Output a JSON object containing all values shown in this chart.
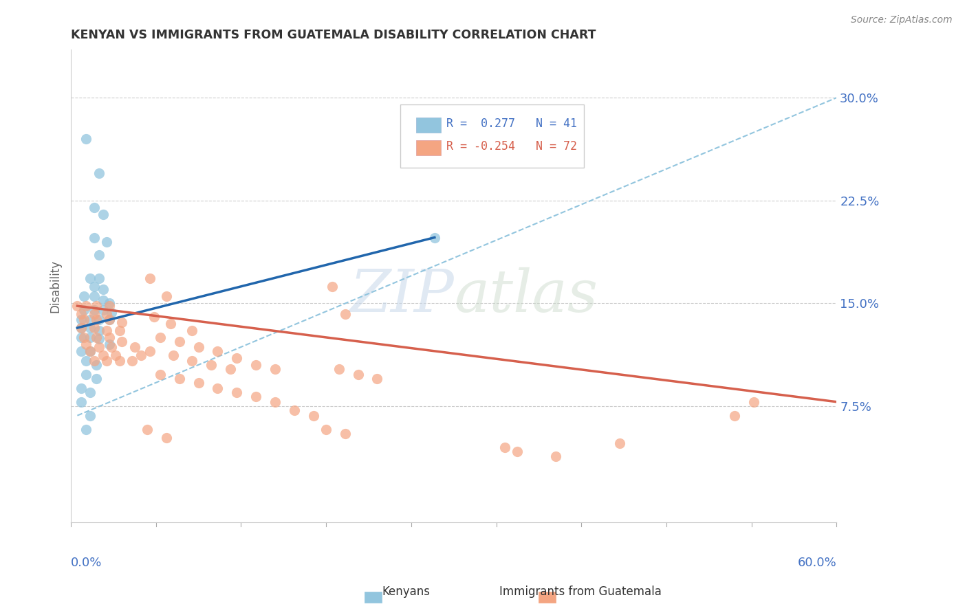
{
  "title": "KENYAN VS IMMIGRANTS FROM GUATEMALA DISABILITY CORRELATION CHART",
  "source": "Source: ZipAtlas.com",
  "ylabel": "Disability",
  "xlim": [
    0.0,
    0.6
  ],
  "ylim": [
    -0.01,
    0.335
  ],
  "yticks": [
    0.075,
    0.15,
    0.225,
    0.3
  ],
  "ytick_labels": [
    "7.5%",
    "15.0%",
    "22.5%",
    "30.0%"
  ],
  "blue_color": "#92c5de",
  "pink_color": "#f4a582",
  "blue_line_color": "#2166ac",
  "pink_line_color": "#d6604d",
  "dashed_line_color": "#92c5de",
  "kenyan_points": [
    [
      0.012,
      0.27
    ],
    [
      0.022,
      0.245
    ],
    [
      0.018,
      0.22
    ],
    [
      0.025,
      0.215
    ],
    [
      0.018,
      0.198
    ],
    [
      0.028,
      0.195
    ],
    [
      0.022,
      0.185
    ],
    [
      0.015,
      0.168
    ],
    [
      0.022,
      0.168
    ],
    [
      0.018,
      0.162
    ],
    [
      0.025,
      0.16
    ],
    [
      0.01,
      0.155
    ],
    [
      0.018,
      0.155
    ],
    [
      0.025,
      0.152
    ],
    [
      0.03,
      0.15
    ],
    [
      0.01,
      0.145
    ],
    [
      0.018,
      0.145
    ],
    [
      0.025,
      0.145
    ],
    [
      0.032,
      0.143
    ],
    [
      0.008,
      0.138
    ],
    [
      0.015,
      0.138
    ],
    [
      0.022,
      0.138
    ],
    [
      0.03,
      0.138
    ],
    [
      0.008,
      0.132
    ],
    [
      0.015,
      0.132
    ],
    [
      0.022,
      0.13
    ],
    [
      0.008,
      0.125
    ],
    [
      0.015,
      0.125
    ],
    [
      0.022,
      0.124
    ],
    [
      0.03,
      0.12
    ],
    [
      0.008,
      0.115
    ],
    [
      0.015,
      0.115
    ],
    [
      0.012,
      0.108
    ],
    [
      0.02,
      0.105
    ],
    [
      0.012,
      0.098
    ],
    [
      0.02,
      0.095
    ],
    [
      0.008,
      0.088
    ],
    [
      0.015,
      0.085
    ],
    [
      0.008,
      0.078
    ],
    [
      0.015,
      0.068
    ],
    [
      0.012,
      0.058
    ],
    [
      0.285,
      0.198
    ]
  ],
  "guatemala_points": [
    [
      0.005,
      0.148
    ],
    [
      0.012,
      0.148
    ],
    [
      0.02,
      0.148
    ],
    [
      0.03,
      0.148
    ],
    [
      0.008,
      0.142
    ],
    [
      0.018,
      0.142
    ],
    [
      0.028,
      0.142
    ],
    [
      0.01,
      0.138
    ],
    [
      0.02,
      0.138
    ],
    [
      0.03,
      0.138
    ],
    [
      0.04,
      0.136
    ],
    [
      0.008,
      0.132
    ],
    [
      0.018,
      0.132
    ],
    [
      0.028,
      0.13
    ],
    [
      0.038,
      0.13
    ],
    [
      0.01,
      0.125
    ],
    [
      0.02,
      0.125
    ],
    [
      0.03,
      0.125
    ],
    [
      0.04,
      0.122
    ],
    [
      0.012,
      0.12
    ],
    [
      0.022,
      0.118
    ],
    [
      0.032,
      0.118
    ],
    [
      0.05,
      0.118
    ],
    [
      0.015,
      0.115
    ],
    [
      0.025,
      0.112
    ],
    [
      0.035,
      0.112
    ],
    [
      0.055,
      0.112
    ],
    [
      0.018,
      0.108
    ],
    [
      0.028,
      0.108
    ],
    [
      0.038,
      0.108
    ],
    [
      0.048,
      0.108
    ],
    [
      0.062,
      0.168
    ],
    [
      0.075,
      0.155
    ],
    [
      0.065,
      0.14
    ],
    [
      0.078,
      0.135
    ],
    [
      0.095,
      0.13
    ],
    [
      0.07,
      0.125
    ],
    [
      0.085,
      0.122
    ],
    [
      0.1,
      0.118
    ],
    [
      0.062,
      0.115
    ],
    [
      0.08,
      0.112
    ],
    [
      0.095,
      0.108
    ],
    [
      0.11,
      0.105
    ],
    [
      0.125,
      0.102
    ],
    [
      0.115,
      0.115
    ],
    [
      0.13,
      0.11
    ],
    [
      0.145,
      0.105
    ],
    [
      0.16,
      0.102
    ],
    [
      0.07,
      0.098
    ],
    [
      0.085,
      0.095
    ],
    [
      0.1,
      0.092
    ],
    [
      0.115,
      0.088
    ],
    [
      0.13,
      0.085
    ],
    [
      0.145,
      0.082
    ],
    [
      0.16,
      0.078
    ],
    [
      0.175,
      0.072
    ],
    [
      0.19,
      0.068
    ],
    [
      0.205,
      0.162
    ],
    [
      0.215,
      0.142
    ],
    [
      0.21,
      0.102
    ],
    [
      0.225,
      0.098
    ],
    [
      0.24,
      0.095
    ],
    [
      0.06,
      0.058
    ],
    [
      0.075,
      0.052
    ],
    [
      0.2,
      0.058
    ],
    [
      0.215,
      0.055
    ],
    [
      0.34,
      0.045
    ],
    [
      0.35,
      0.042
    ],
    [
      0.38,
      0.038
    ],
    [
      0.43,
      0.048
    ],
    [
      0.52,
      0.068
    ],
    [
      0.535,
      0.078
    ]
  ],
  "blue_line_x": [
    0.005,
    0.285
  ],
  "blue_line_y": [
    0.132,
    0.198
  ],
  "pink_line_x": [
    0.005,
    0.6
  ],
  "pink_line_y": [
    0.148,
    0.078
  ],
  "dashed_line_x": [
    0.005,
    0.6
  ],
  "dashed_line_y": [
    0.068,
    0.3
  ]
}
